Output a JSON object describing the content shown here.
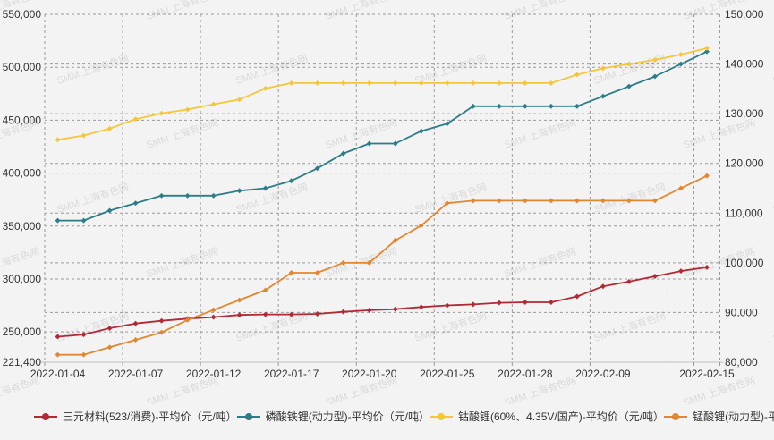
{
  "watermark": {
    "text": "SMM 上海有色网"
  },
  "legend": {
    "items": [
      {
        "label": "三元材料(523/消费)-平均价（元/吨）",
        "color": "#b02a35"
      },
      {
        "label": "磷酸铁锂(动力型)-平均价（元/吨）",
        "color": "#2d7d88"
      },
      {
        "label": "钴酸锂(60%、4.35V/国产)-平均价（元/吨）",
        "color": "#f5c63c"
      },
      {
        "label": "锰酸锂(动力型)-平均价（元/吨）",
        "color": "#e2872f"
      }
    ]
  },
  "chart_data": {
    "type": "line",
    "x": [
      "2022-01-04",
      "2022-01-05",
      "2022-01-06",
      "2022-01-07",
      "2022-01-10",
      "2022-01-11",
      "2022-01-12",
      "2022-01-13",
      "2022-01-14",
      "2022-01-17",
      "2022-01-18",
      "2022-01-19",
      "2022-01-20",
      "2022-01-21",
      "2022-01-24",
      "2022-01-25",
      "2022-01-26",
      "2022-01-27",
      "2022-01-28",
      "2022-02-07",
      "2022-02-08",
      "2022-02-09",
      "2022-02-10",
      "2022-02-11",
      "2022-02-14",
      "2022-02-15"
    ],
    "x_label_indices": [
      0,
      3,
      6,
      9,
      12,
      15,
      18,
      21,
      25
    ],
    "left_axis": {
      "title": "",
      "unit": "元/吨",
      "min": 221400,
      "max": 550000,
      "ticks": [
        550000,
        500000,
        450000,
        400000,
        350000,
        300000,
        250000,
        221400
      ]
    },
    "right_axis": {
      "title": "",
      "unit": "元/吨",
      "min": 80000,
      "max": 150000,
      "ticks": [
        150000,
        140000,
        130000,
        120000,
        110000,
        100000,
        90000,
        80000
      ]
    },
    "grid": {
      "style": "dashed",
      "vertical_boundary_interval": 3
    },
    "legend_position": "bottom",
    "series": [
      {
        "name": "三元材料(523/消费)-平均价（元/吨）",
        "axis": "left",
        "color": "#b02a35",
        "values": [
          245500,
          247500,
          253500,
          258000,
          260500,
          262500,
          264000,
          266000,
          266500,
          266500,
          267000,
          269000,
          270500,
          271500,
          273500,
          275000,
          276000,
          277500,
          278000,
          278000,
          283500,
          293000,
          297500,
          302500,
          307500,
          311000
        ]
      },
      {
        "name": "磷酸铁锂(动力型)-平均价（元/吨）",
        "axis": "right",
        "color": "#2d7d88",
        "values": [
          108500,
          108500,
          110500,
          112000,
          113500,
          113500,
          113500,
          114500,
          115000,
          116500,
          119000,
          122000,
          124000,
          124000,
          126500,
          128000,
          131500,
          131500,
          131500,
          131500,
          131500,
          133500,
          135500,
          137500,
          140000,
          142500
        ]
      },
      {
        "name": "钴酸锂(60%、4.35V/国产)-平均价（元/吨）",
        "axis": "left",
        "color": "#f5c63c",
        "values": [
          431500,
          435500,
          442000,
          451000,
          456500,
          460000,
          465000,
          469500,
          480000,
          485000,
          485000,
          485000,
          485000,
          485000,
          485000,
          485000,
          485000,
          485000,
          485000,
          485000,
          493000,
          499000,
          503000,
          507000,
          512000,
          518000
        ]
      },
      {
        "name": "锰酸锂(动力型)-平均价（元/吨）",
        "axis": "right",
        "color": "#e2872f",
        "values": [
          81500,
          81500,
          83000,
          84500,
          86000,
          88500,
          90500,
          92500,
          94500,
          98000,
          98000,
          100000,
          100000,
          104500,
          107500,
          112000,
          112500,
          112500,
          112500,
          112500,
          112500,
          112500,
          112500,
          112500,
          115000,
          117500
        ]
      }
    ]
  }
}
